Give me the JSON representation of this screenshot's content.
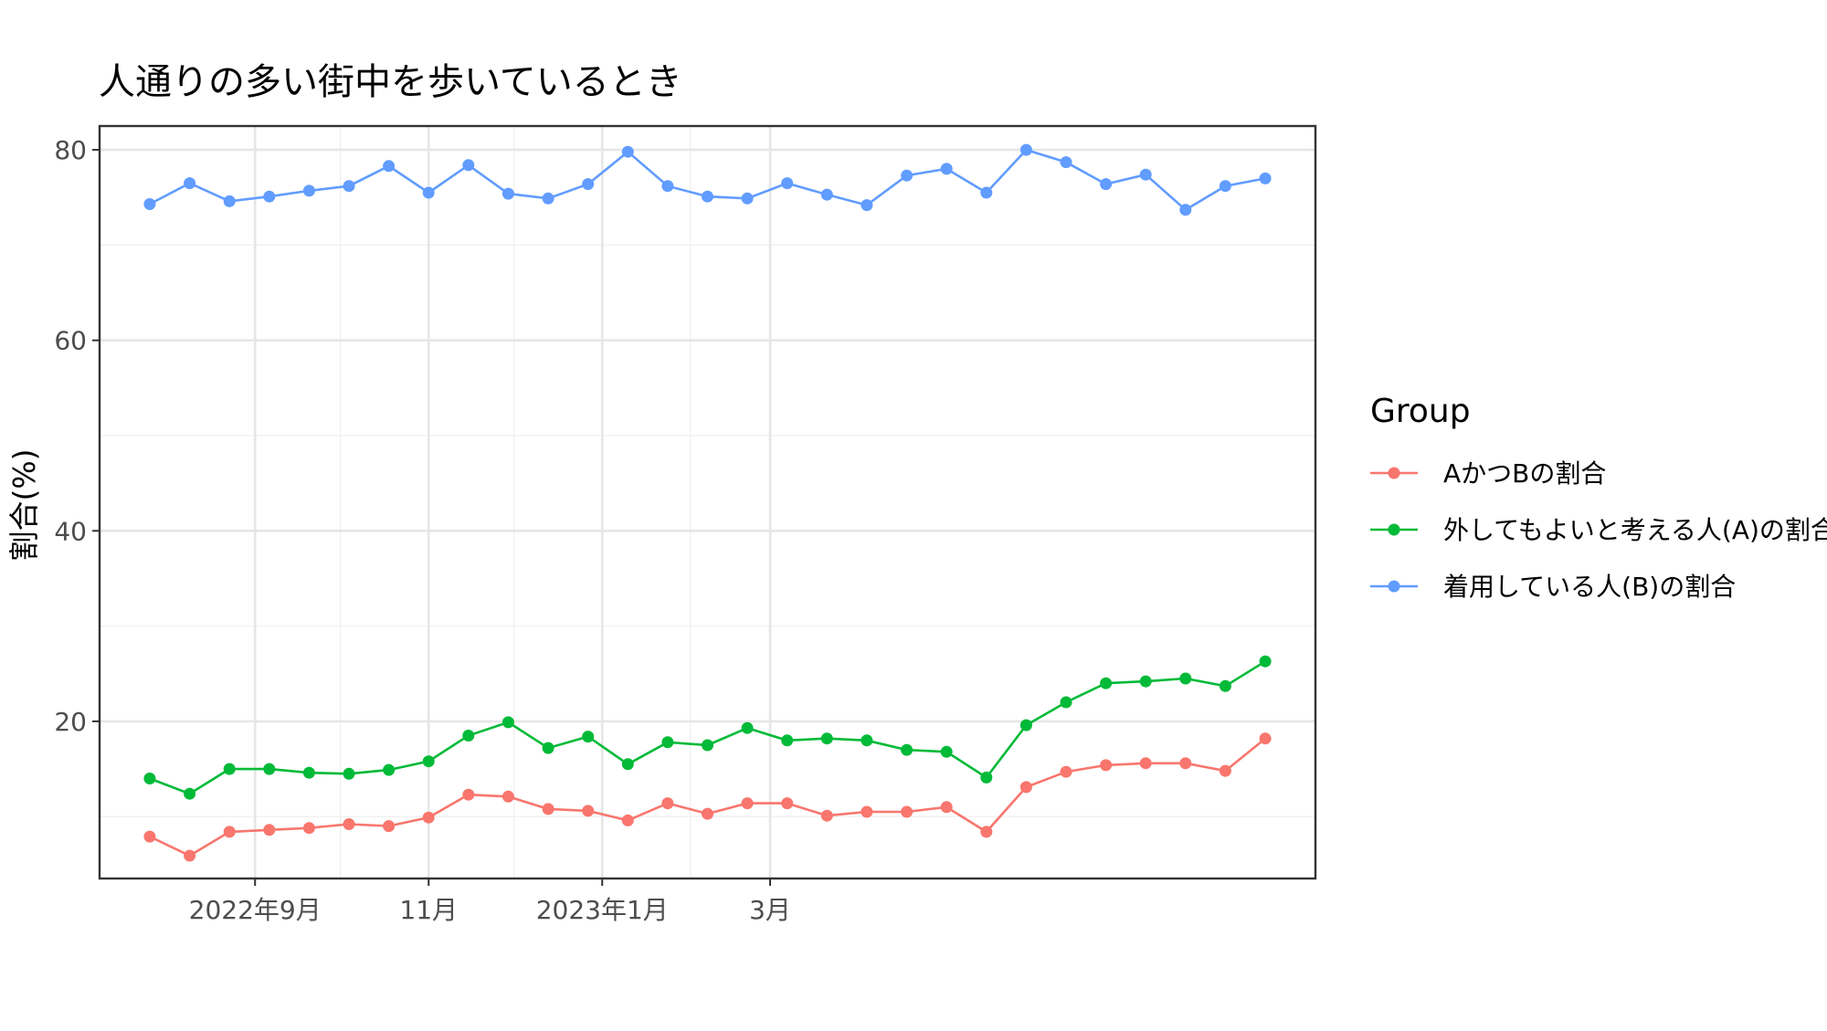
{
  "chart_data": {
    "type": "line",
    "title": "人通りの多い街中を歩いているとき",
    "xlabel": "",
    "ylabel": "割合(%)",
    "ylim": [
      3.5,
      82.5
    ],
    "y_ticks": [
      20,
      40,
      60,
      80
    ],
    "y_tick_labels": [
      "20",
      "40",
      "60",
      "80"
    ],
    "y_minor_ticks": [
      10,
      30,
      50,
      70
    ],
    "x_ticks": [
      {
        "x": "2022-09-01",
        "label": "2022年9月"
      },
      {
        "x": "2022-11-01",
        "label": "11月"
      },
      {
        "x": "2023-01-01",
        "label": "2023年1月"
      },
      {
        "x": "2023-03-01",
        "label": "3月"
      }
    ],
    "x_minor_ticks": [
      "2022-10-01",
      "2022-12-01",
      "2023-02-01"
    ],
    "grid": true,
    "legend": {
      "title": "Group",
      "position": "right"
    },
    "x": [
      "2022-07-26",
      "2022-08-09",
      "2022-08-23",
      "2022-09-06",
      "2022-09-20",
      "2022-10-04",
      "2022-10-18",
      "2022-11-01",
      "2022-11-15",
      "2022-11-29",
      "2022-12-13",
      "2022-12-27",
      "2023-01-10",
      "2023-01-24",
      "2023-02-07",
      "2023-02-21",
      "2023-03-07",
      "2023-03-21",
      "2023-04-04",
      "2023-04-18",
      "2023-05-02",
      "2023-05-16",
      "2023-05-30",
      "2023-06-13",
      "2023-06-27",
      "2023-07-11",
      "2023-07-25",
      "2023-08-08",
      "2023-08-22"
    ],
    "series": [
      {
        "name": "AかつBの割合",
        "color": "#F8766D",
        "values": [
          7.9,
          5.9,
          8.4,
          8.6,
          8.8,
          9.2,
          9.0,
          9.9,
          12.3,
          12.1,
          10.8,
          10.6,
          9.6,
          11.4,
          10.3,
          11.4,
          11.4,
          10.1,
          10.5,
          10.5,
          11.0,
          8.4,
          13.1,
          14.7,
          15.4,
          15.6,
          15.6,
          14.8,
          18.2
        ]
      },
      {
        "name": "外してもよいと考える人(A)の割合",
        "color": "#00BA38",
        "values": [
          14.0,
          12.4,
          15.0,
          15.0,
          14.6,
          14.5,
          14.9,
          15.8,
          18.5,
          19.9,
          17.2,
          18.4,
          15.5,
          17.8,
          17.5,
          19.3,
          18.0,
          18.2,
          18.0,
          17.0,
          16.8,
          14.1,
          19.6,
          22.0,
          24.0,
          24.2,
          24.5,
          23.7,
          26.3
        ]
      },
      {
        "name": "着用している人(B)の割合",
        "color": "#619CFF",
        "values": [
          74.3,
          76.5,
          74.6,
          75.1,
          75.7,
          76.2,
          78.3,
          75.5,
          78.4,
          75.4,
          74.9,
          76.4,
          79.8,
          76.2,
          75.1,
          74.9,
          76.5,
          75.3,
          74.2,
          77.3,
          78.0,
          75.5,
          80.0,
          78.7,
          76.4,
          77.4,
          73.7,
          76.2,
          77.0
        ]
      }
    ]
  }
}
